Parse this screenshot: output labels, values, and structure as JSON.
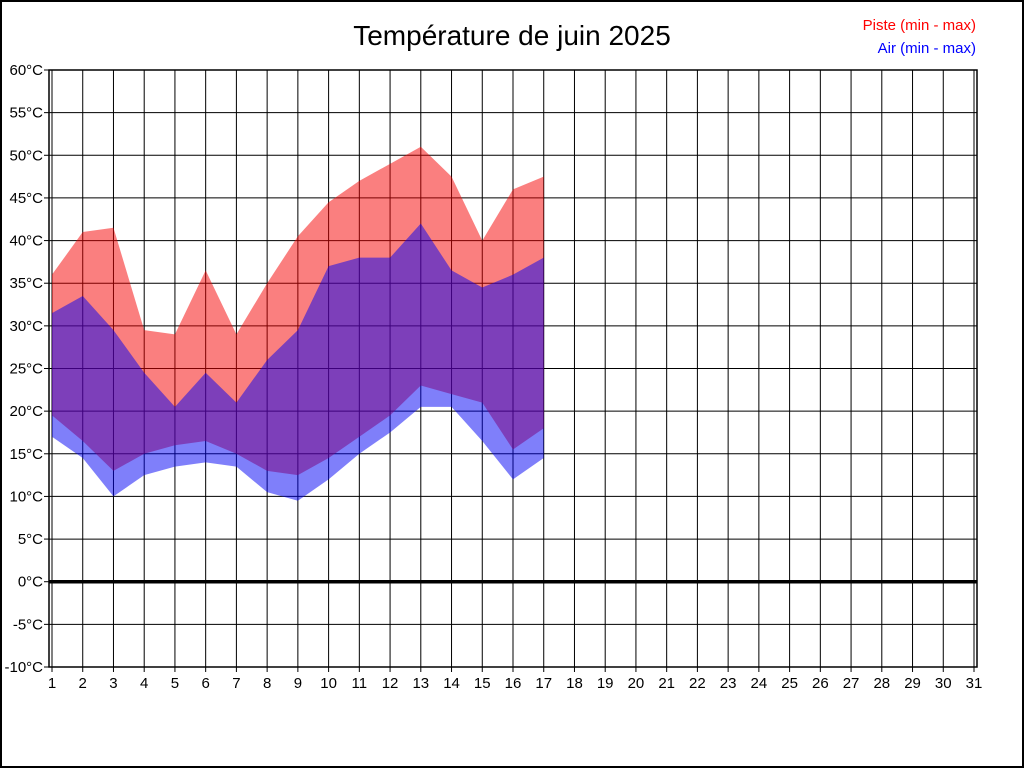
{
  "page": {
    "title": "Température de juin 2025",
    "legend": [
      {
        "label": "Piste (min - max)",
        "color": "#ff0000"
      },
      {
        "label": "Air (min - max)",
        "color": "#0000ff"
      }
    ]
  },
  "chart_data": {
    "type": "area",
    "title": "Température de juin 2025",
    "xlabel": "",
    "ylabel": "",
    "days": [
      1,
      2,
      3,
      4,
      5,
      6,
      7,
      8,
      9,
      10,
      11,
      12,
      13,
      14,
      15,
      16,
      17
    ],
    "x_axis_tick_labels": [
      "1",
      "2",
      "3",
      "4",
      "5",
      "6",
      "7",
      "8",
      "9",
      "10",
      "11",
      "12",
      "13",
      "14",
      "15",
      "16",
      "17",
      "18",
      "19",
      "20",
      "21",
      "22",
      "23",
      "24",
      "25",
      "26",
      "27",
      "28",
      "29",
      "30",
      "31"
    ],
    "xlim": [
      1,
      31
    ],
    "ylim": [
      -10,
      60
    ],
    "y_tick_step": 5,
    "y_tick_labels": [
      "60°C",
      "55°C",
      "50°C",
      "45°C",
      "40°C",
      "35°C",
      "30°C",
      "25°C",
      "20°C",
      "15°C",
      "10°C",
      "5°C",
      "0°C",
      "-5°C",
      "-10°C"
    ],
    "grid": true,
    "zero_line_at": 0,
    "legend_position": "top-right",
    "series": [
      {
        "name": "Piste (min - max)",
        "band": true,
        "color": "#f50000",
        "fill_opacity": 0.5,
        "min": [
          19.5,
          16.5,
          13.0,
          15.0,
          16.0,
          16.5,
          15.0,
          13.0,
          12.5,
          14.5,
          17.0,
          19.5,
          23.0,
          22.0,
          21.0,
          15.5,
          18.0
        ],
        "max": [
          36.0,
          41.0,
          41.5,
          29.5,
          29.0,
          36.5,
          29.0,
          35.0,
          40.5,
          44.5,
          47.0,
          49.0,
          51.0,
          47.5,
          40.0,
          46.0,
          47.5
        ]
      },
      {
        "name": "Air (min - max)",
        "band": true,
        "color": "#0000f5",
        "fill_opacity": 0.5,
        "min": [
          17.0,
          14.5,
          10.0,
          12.5,
          13.5,
          14.0,
          13.5,
          10.5,
          9.5,
          12.0,
          15.0,
          17.5,
          20.5,
          20.5,
          16.5,
          12.0,
          14.5
        ],
        "max": [
          31.5,
          33.5,
          29.5,
          24.5,
          20.5,
          24.5,
          21.0,
          26.0,
          29.5,
          37.0,
          38.0,
          38.0,
          42.0,
          36.5,
          34.5,
          36.0,
          38.0
        ]
      }
    ]
  }
}
